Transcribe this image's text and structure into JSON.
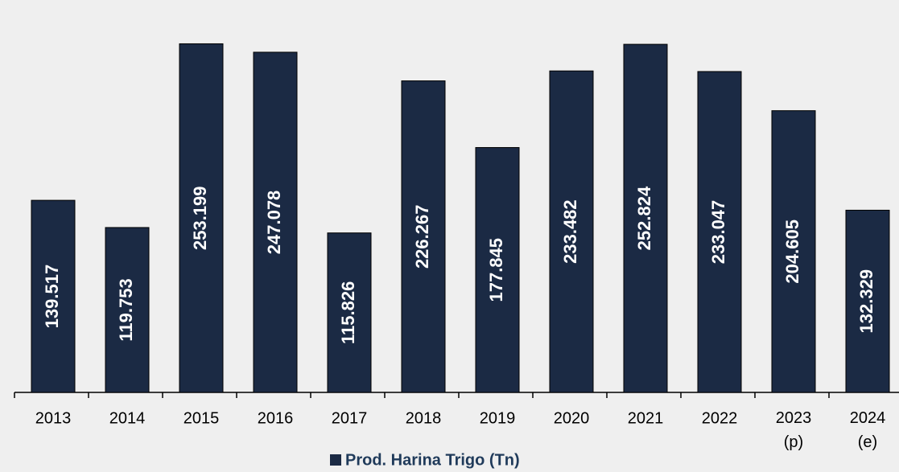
{
  "chart_data": {
    "type": "bar",
    "categories": [
      "2013",
      "2014",
      "2015",
      "2016",
      "2017",
      "2018",
      "2019",
      "2020",
      "2021",
      "2022",
      "2023 (p)",
      "2024 (e)"
    ],
    "series": [
      {
        "name": "Prod. Harina Trigo (Tn)",
        "color": "#1b2a44",
        "values": [
          139517,
          119753,
          253199,
          247078,
          115826,
          226267,
          177845,
          233482,
          252824,
          233047,
          204605,
          132329
        ],
        "value_labels": [
          "139.517",
          "119.753",
          "253.199",
          "247.078",
          "115.826",
          "226.267",
          "177.845",
          "233.482",
          "252.824",
          "233.047",
          "204.605",
          "132.329"
        ]
      }
    ],
    "ylim": [
      0,
      285000
    ],
    "legend": "bottom"
  }
}
